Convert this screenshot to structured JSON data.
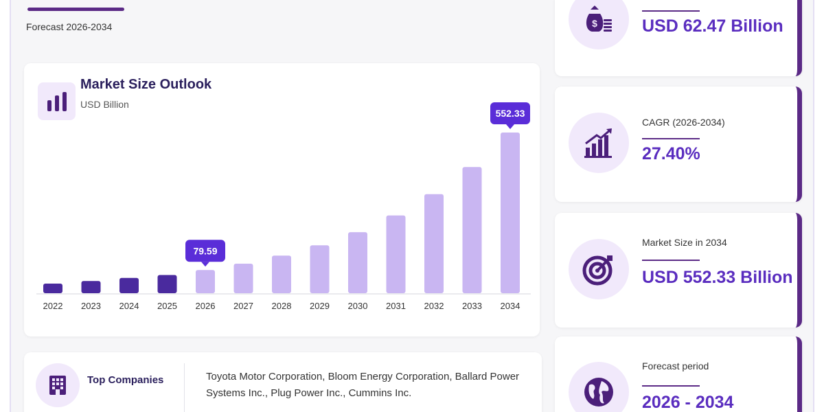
{
  "header": {
    "subtitle": "Forecast 2026-2034"
  },
  "chart_card": {
    "title": "Market Size Outlook",
    "unit": "USD Billion"
  },
  "chart_data": {
    "type": "bar",
    "title": "Market Size Outlook",
    "ylabel": "USD Billion",
    "categories": [
      "2022",
      "2023",
      "2024",
      "2025",
      "2026",
      "2027",
      "2028",
      "2029",
      "2030",
      "2031",
      "2032",
      "2033",
      "2034"
    ],
    "values": [
      33.1,
      42.0,
      52.5,
      62.47,
      79.59,
      101.4,
      129.2,
      164.6,
      209.7,
      267.2,
      340.4,
      433.7,
      552.33
    ],
    "historical_color": "#4a2a9e",
    "forecast_color": "#c9b6f2",
    "callouts": [
      {
        "category": "2026",
        "label": "79.59"
      },
      {
        "category": "2034",
        "label": "552.33"
      }
    ],
    "callout_color": "#5a2dd8"
  },
  "companies": {
    "label": "Top Companies",
    "text": "Toyota Motor Corporation, Bloom Energy Corporation, Ballard Power Systems Inc., Plug Power Inc., Cummins Inc."
  },
  "stats": [
    {
      "icon": "money-bag-icon",
      "label": "",
      "value": "USD 62.47 Billion"
    },
    {
      "icon": "growth-chart-icon",
      "label": "CAGR (2026-2034)",
      "value": "27.40%"
    },
    {
      "icon": "target-icon",
      "label": "Market Size in 2034",
      "value": "USD 552.33 Billion"
    },
    {
      "icon": "globe-icon",
      "label": "Forecast period",
      "value": "2026 - 2034"
    }
  ],
  "colors": {
    "accent": "#5b2a86",
    "value_text": "#5a2dbf",
    "icon_bg": "#f1e9fb",
    "icon_fg": "#4b1f7a"
  }
}
